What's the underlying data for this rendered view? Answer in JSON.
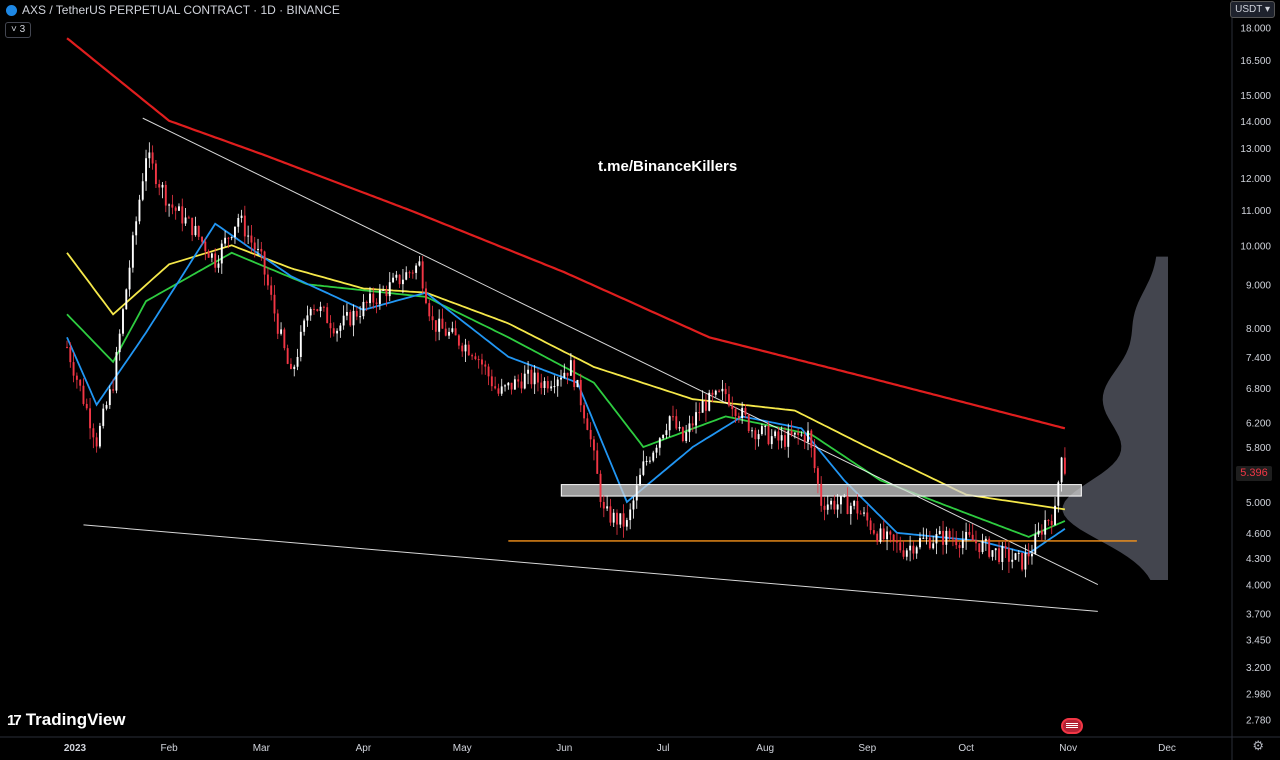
{
  "header": {
    "title": "AXS / TetherUS PERPETUAL CONTRACT · 1D · BINANCE",
    "indicator_count": "3"
  },
  "currency_button": "USDT",
  "watermark_text": "t.me/BinanceKillers",
  "branding": {
    "logo_text": "TradingView"
  },
  "last_price_label": "5.396",
  "colors": {
    "background": "#000000",
    "up": "#ffffff",
    "down": "#f23645",
    "ma200": "#e01e1e",
    "ma_yellow": "#f5e84a",
    "ma_green": "#2ecc40",
    "ma_blue": "#2196f3",
    "support_line": "#f7931a",
    "trendline": "#ffffff",
    "zone": "#cfcfcf",
    "volume_profile": "#4a4d57"
  },
  "chart_data": {
    "type": "candlestick",
    "x_axis": {
      "labels": [
        "2023",
        "Feb",
        "Mar",
        "Apr",
        "May",
        "Jun",
        "Jul",
        "Aug",
        "Sep",
        "Oct",
        "Nov",
        "Dec"
      ]
    },
    "y_axis": {
      "scale": "log",
      "ticks": [
        "18.000",
        "16.500",
        "15.000",
        "14.000",
        "13.000",
        "12.000",
        "11.000",
        "10.000",
        "9.000",
        "8.000",
        "7.400",
        "6.800",
        "6.200",
        "5.800",
        "5.000",
        "4.600",
        "4.300",
        "4.000",
        "3.700",
        "3.450",
        "3.200",
        "2.980",
        "2.780"
      ],
      "range": [
        2.65,
        19.4
      ]
    },
    "price_waypoints": [
      [
        "2023-01-01",
        7.6
      ],
      [
        "2023-01-10",
        5.9
      ],
      [
        "2023-01-15",
        6.9
      ],
      [
        "2023-01-19",
        8.9
      ],
      [
        "2023-01-25",
        12.8
      ],
      [
        "2023-02-01",
        11.2
      ],
      [
        "2023-02-08",
        10.5
      ],
      [
        "2023-02-15",
        9.6
      ],
      [
        "2023-02-22",
        10.8
      ],
      [
        "2023-03-01",
        9.6
      ],
      [
        "2023-03-10",
        7.0
      ],
      [
        "2023-03-16",
        8.6
      ],
      [
        "2023-03-24",
        8.0
      ],
      [
        "2023-04-05",
        8.7
      ],
      [
        "2023-04-18",
        9.5
      ],
      [
        "2023-04-22",
        8.1
      ],
      [
        "2023-05-05",
        7.5
      ],
      [
        "2023-05-12",
        6.7
      ],
      [
        "2023-05-20",
        7.0
      ],
      [
        "2023-05-26",
        6.9
      ],
      [
        "2023-06-03",
        7.2
      ],
      [
        "2023-06-08",
        6.2
      ],
      [
        "2023-06-13",
        4.85
      ],
      [
        "2023-06-20",
        4.7
      ],
      [
        "2023-06-25",
        5.5
      ],
      [
        "2023-07-03",
        6.3
      ],
      [
        "2023-07-07",
        5.9
      ],
      [
        "2023-07-13",
        6.5
      ],
      [
        "2023-07-20",
        6.7
      ],
      [
        "2023-07-28",
        6.1
      ],
      [
        "2023-08-05",
        5.9
      ],
      [
        "2023-08-14",
        6.0
      ],
      [
        "2023-08-18",
        5.0
      ],
      [
        "2023-08-28",
        4.95
      ],
      [
        "2023-09-05",
        4.55
      ],
      [
        "2023-09-12",
        4.4
      ],
      [
        "2023-09-17",
        4.5
      ],
      [
        "2023-09-25",
        4.55
      ],
      [
        "2023-10-03",
        4.5
      ],
      [
        "2023-10-11",
        4.35
      ],
      [
        "2023-10-18",
        4.25
      ],
      [
        "2023-10-21",
        4.4
      ],
      [
        "2023-10-25",
        4.75
      ],
      [
        "2023-10-28",
        4.85
      ],
      [
        "2023-10-30",
        5.75
      ],
      [
        "2023-10-31",
        5.396
      ]
    ],
    "moving_averages": [
      {
        "color": "ma200",
        "points": [
          [
            "2023-01-01",
            17.5
          ],
          [
            "2023-02-01",
            14.0
          ],
          [
            "2023-03-01",
            12.8
          ],
          [
            "2023-04-15",
            11.0
          ],
          [
            "2023-06-01",
            9.3
          ],
          [
            "2023-07-15",
            7.8
          ],
          [
            "2023-09-01",
            7.0
          ],
          [
            "2023-10-31",
            6.1
          ]
        ]
      },
      {
        "color": "ma_yellow",
        "points": [
          [
            "2023-01-01",
            9.8
          ],
          [
            "2023-01-15",
            8.3
          ],
          [
            "2023-02-01",
            9.5
          ],
          [
            "2023-02-20",
            10.0
          ],
          [
            "2023-03-10",
            9.4
          ],
          [
            "2023-04-01",
            8.9
          ],
          [
            "2023-04-20",
            8.8
          ],
          [
            "2023-05-15",
            8.1
          ],
          [
            "2023-06-10",
            7.2
          ],
          [
            "2023-07-10",
            6.6
          ],
          [
            "2023-08-10",
            6.4
          ],
          [
            "2023-09-01",
            5.8
          ],
          [
            "2023-10-01",
            5.1
          ],
          [
            "2023-10-31",
            4.9
          ]
        ]
      },
      {
        "color": "ma_green",
        "points": [
          [
            "2023-01-01",
            8.3
          ],
          [
            "2023-01-15",
            7.3
          ],
          [
            "2023-01-25",
            8.6
          ],
          [
            "2023-02-20",
            9.8
          ],
          [
            "2023-03-15",
            9.0
          ],
          [
            "2023-04-20",
            8.7
          ],
          [
            "2023-05-15",
            7.8
          ],
          [
            "2023-06-10",
            6.9
          ],
          [
            "2023-06-25",
            5.8
          ],
          [
            "2023-07-20",
            6.3
          ],
          [
            "2023-08-15",
            6.0
          ],
          [
            "2023-09-05",
            5.3
          ],
          [
            "2023-10-01",
            4.85
          ],
          [
            "2023-10-20",
            4.55
          ],
          [
            "2023-10-31",
            4.75
          ]
        ]
      },
      {
        "color": "ma_blue",
        "points": [
          [
            "2023-01-01",
            7.8
          ],
          [
            "2023-01-10",
            6.5
          ],
          [
            "2023-01-25",
            7.9
          ],
          [
            "2023-02-15",
            10.6
          ],
          [
            "2023-03-10",
            9.2
          ],
          [
            "2023-04-01",
            8.4
          ],
          [
            "2023-04-20",
            8.8
          ],
          [
            "2023-05-15",
            7.4
          ],
          [
            "2023-06-05",
            6.9
          ],
          [
            "2023-06-20",
            5.0
          ],
          [
            "2023-07-10",
            5.8
          ],
          [
            "2023-07-25",
            6.3
          ],
          [
            "2023-08-12",
            6.1
          ],
          [
            "2023-08-25",
            5.3
          ],
          [
            "2023-09-10",
            4.6
          ],
          [
            "2023-10-05",
            4.5
          ],
          [
            "2023-10-20",
            4.35
          ],
          [
            "2023-10-31",
            4.65
          ]
        ]
      }
    ],
    "trendlines": [
      {
        "from": [
          "2023-01-24",
          14.1
        ],
        "to": [
          "2023-11-10",
          4.0
        ]
      },
      {
        "from": [
          "2023-01-06",
          4.7
        ],
        "to": [
          "2023-11-10",
          3.72
        ]
      }
    ],
    "support_line": {
      "value": 4.5,
      "from": "2023-05-15",
      "to": "2023-10-31"
    },
    "zone": {
      "low": 5.08,
      "high": 5.24,
      "from": "2023-06-01",
      "to": "2023-11-05"
    },
    "volume_profile": {
      "value_range": [
        4.05,
        9.7
      ]
    },
    "last_price": 5.396
  }
}
